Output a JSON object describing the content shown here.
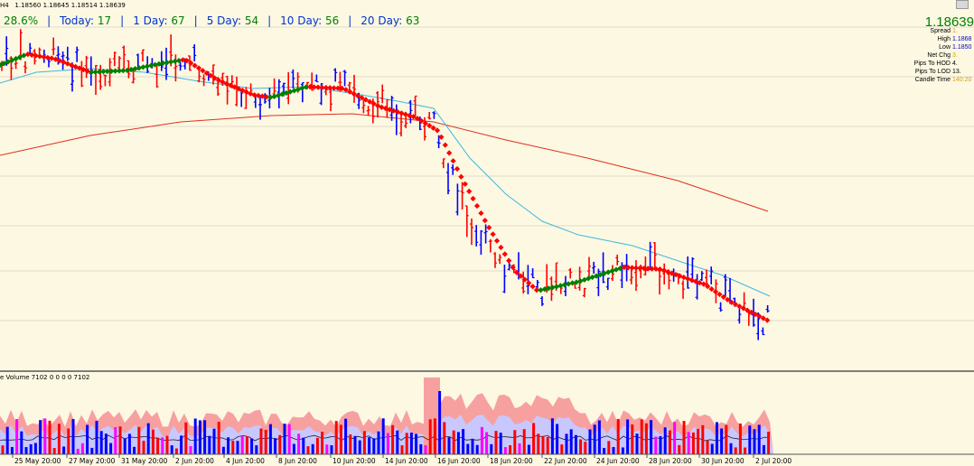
{
  "header": {
    "symbol_tf": "H4",
    "ohlc": "1.18560 1.18645 1.18514 1.18639"
  },
  "stats_bar": {
    "partial": "28.6%",
    "items": [
      {
        "label": "Today:",
        "value": "17"
      },
      {
        "label": "1 Day:",
        "value": "67"
      },
      {
        "label": "5 Day:",
        "value": "54"
      },
      {
        "label": "10 Day:",
        "value": "56"
      },
      {
        "label": "20 Day:",
        "value": "63"
      }
    ]
  },
  "info_panel": {
    "price": "1.18639",
    "rows": [
      {
        "label": "Spread",
        "value": "1.",
        "color": "#d4a017"
      },
      {
        "label": "High",
        "value": "1.1868",
        "color": "#0000cc"
      },
      {
        "label": "Low",
        "value": "1.1850",
        "color": "#0000cc"
      },
      {
        "label": "Net Chg",
        "value": "3.",
        "color": "#d4a017"
      },
      {
        "label": "Pips To HOD",
        "value": "4.",
        "color": "#000000"
      },
      {
        "label": "Pips To LOD",
        "value": "13.",
        "color": "#000000"
      },
      {
        "label": "Candle Time",
        "value": "140:20",
        "color": "#d4a017"
      }
    ]
  },
  "volume_label": "e Volume 7102 0 0 0 0 7102",
  "x_axis_labels": [
    "25 May 20:00",
    "27 May 20:00",
    "31 May 20:00",
    "2 Jun 20:00",
    "4 Jun 20:00",
    "8 Jun 20:00",
    "10 Jun 20:00",
    "14 Jun 20:00",
    "16 Jun 20:00",
    "18 Jun 20:00",
    "22 Jun 20:00",
    "24 Jun 20:00",
    "28 Jun 20:00",
    "30 Jun 20:00",
    "2 Jul 20:00"
  ],
  "colors": {
    "background": "#fcf8e2",
    "bull_bar": "#0000ff",
    "bear_bar": "#ff0000",
    "ma_up": "#008000",
    "ma_down": "#ff0000",
    "slow_ma": "#e03020",
    "mid_ma": "#40b8e0",
    "vol_band": "#f7a0a0",
    "vol_band_inner": "#c8c8ff"
  },
  "chart_data": {
    "type": "ohlc",
    "timeframe": "H4",
    "x_labels": [
      "25 May 20:00",
      "27 May 20:00",
      "31 May 20:00",
      "2 Jun 20:00",
      "4 Jun 20:00",
      "8 Jun 20:00",
      "10 Jun 20:00",
      "14 Jun 20:00",
      "16 Jun 20:00",
      "18 Jun 20:00",
      "22 Jun 20:00",
      "24 Jun 20:00",
      "28 Jun 20:00",
      "30 Jun 20:00",
      "2 Jul 20:00"
    ],
    "last_close": 1.18639,
    "volume_last": 7102
  }
}
